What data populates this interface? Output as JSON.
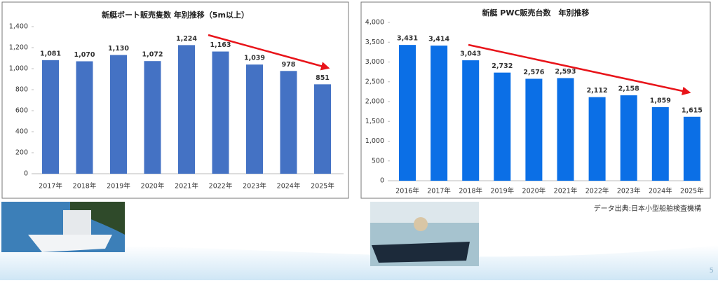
{
  "chart_data": [
    {
      "type": "bar",
      "title": "新艇ボート販売隻数 年別推移（5m以上）",
      "categories": [
        "2017年",
        "2018年",
        "2019年",
        "2020年",
        "2021年",
        "2022年",
        "2023年",
        "2024年",
        "2025年"
      ],
      "values": [
        1081,
        1070,
        1130,
        1072,
        1224,
        1163,
        1039,
        978,
        851
      ],
      "value_labels": [
        "1,081",
        "1,070",
        "1,130",
        "1,072",
        "1,224",
        "1,163",
        "1,039",
        "978",
        "851"
      ],
      "color": "#4472c4",
      "ylim": [
        0,
        1400
      ],
      "yticks": [
        0,
        200,
        400,
        600,
        800,
        {
          "value": 1000,
          "label": "1,000"
        },
        {
          "value": 1200,
          "label": "1,200"
        },
        {
          "value": 1400,
          "label": "1,400"
        }
      ]
    },
    {
      "type": "bar",
      "title": "新艇 PWC販売台数　年別推移",
      "categories": [
        "2016年",
        "2017年",
        "2018年",
        "2019年",
        "2020年",
        "2021年",
        "2022年",
        "2023年",
        "2024年",
        "2025年"
      ],
      "values": [
        3431,
        3414,
        3043,
        2732,
        2576,
        2593,
        2112,
        2158,
        1859,
        1615
      ],
      "value_labels": [
        "3,431",
        "3,414",
        "3,043",
        "2,732",
        "2,576",
        "2,593",
        "2,112",
        "2,158",
        "1,859",
        "1,615"
      ],
      "color": "#0b6fe6",
      "ylim": [
        0,
        4000
      ],
      "yticks": [
        0,
        500,
        {
          "value": 1000,
          "label": "1,000"
        },
        {
          "value": 1500,
          "label": "1,500"
        },
        {
          "value": 2000,
          "label": "2,000"
        },
        {
          "value": 2500,
          "label": "2,500"
        },
        {
          "value": 3000,
          "label": "3,000"
        },
        {
          "value": 3500,
          "label": "3,500"
        },
        {
          "value": 4000,
          "label": "4,000"
        }
      ]
    }
  ],
  "source": "データ出典:日本小型船舶検査機構",
  "page_number": "5"
}
